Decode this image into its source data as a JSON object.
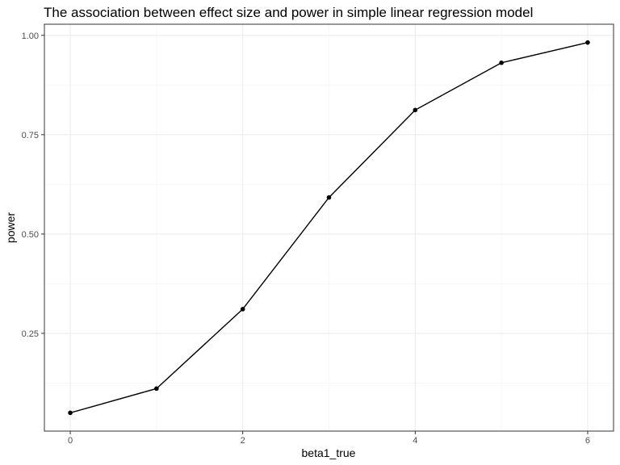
{
  "chart_data": {
    "type": "line",
    "title": "The association between effect size and power in simple linear regression model",
    "xlabel": "beta1_true",
    "ylabel": "power",
    "x": [
      0,
      1,
      2,
      3,
      4,
      5,
      6
    ],
    "series": [
      {
        "values": [
          0.05,
          0.111,
          0.311,
          0.592,
          0.812,
          0.931,
          0.982
        ],
        "color": "#000000"
      }
    ],
    "x_ticks": [
      0,
      2,
      4,
      6
    ],
    "x_tick_labels": [
      "0",
      "2",
      "4",
      "6"
    ],
    "y_ticks": [
      0.25,
      0.5,
      0.75,
      1.0
    ],
    "y_tick_labels": [
      "0.25",
      "0.50",
      "0.75",
      "1.00"
    ],
    "x_minor_ticks": [
      1,
      3,
      5
    ],
    "y_minor_ticks": [
      0.125,
      0.375,
      0.625,
      0.875
    ],
    "xlim": [
      -0.3,
      6.3
    ],
    "ylim": [
      0.004,
      1.028
    ],
    "grid": true,
    "legend": "none",
    "colors": {
      "panel_border": "#333333",
      "grid_major": "#ebebeb",
      "grid_minor": "#f5f5f5",
      "tick_mark": "#333333",
      "tick_label": "#4d4d4d",
      "line": "#000000",
      "point": "#000000"
    }
  }
}
